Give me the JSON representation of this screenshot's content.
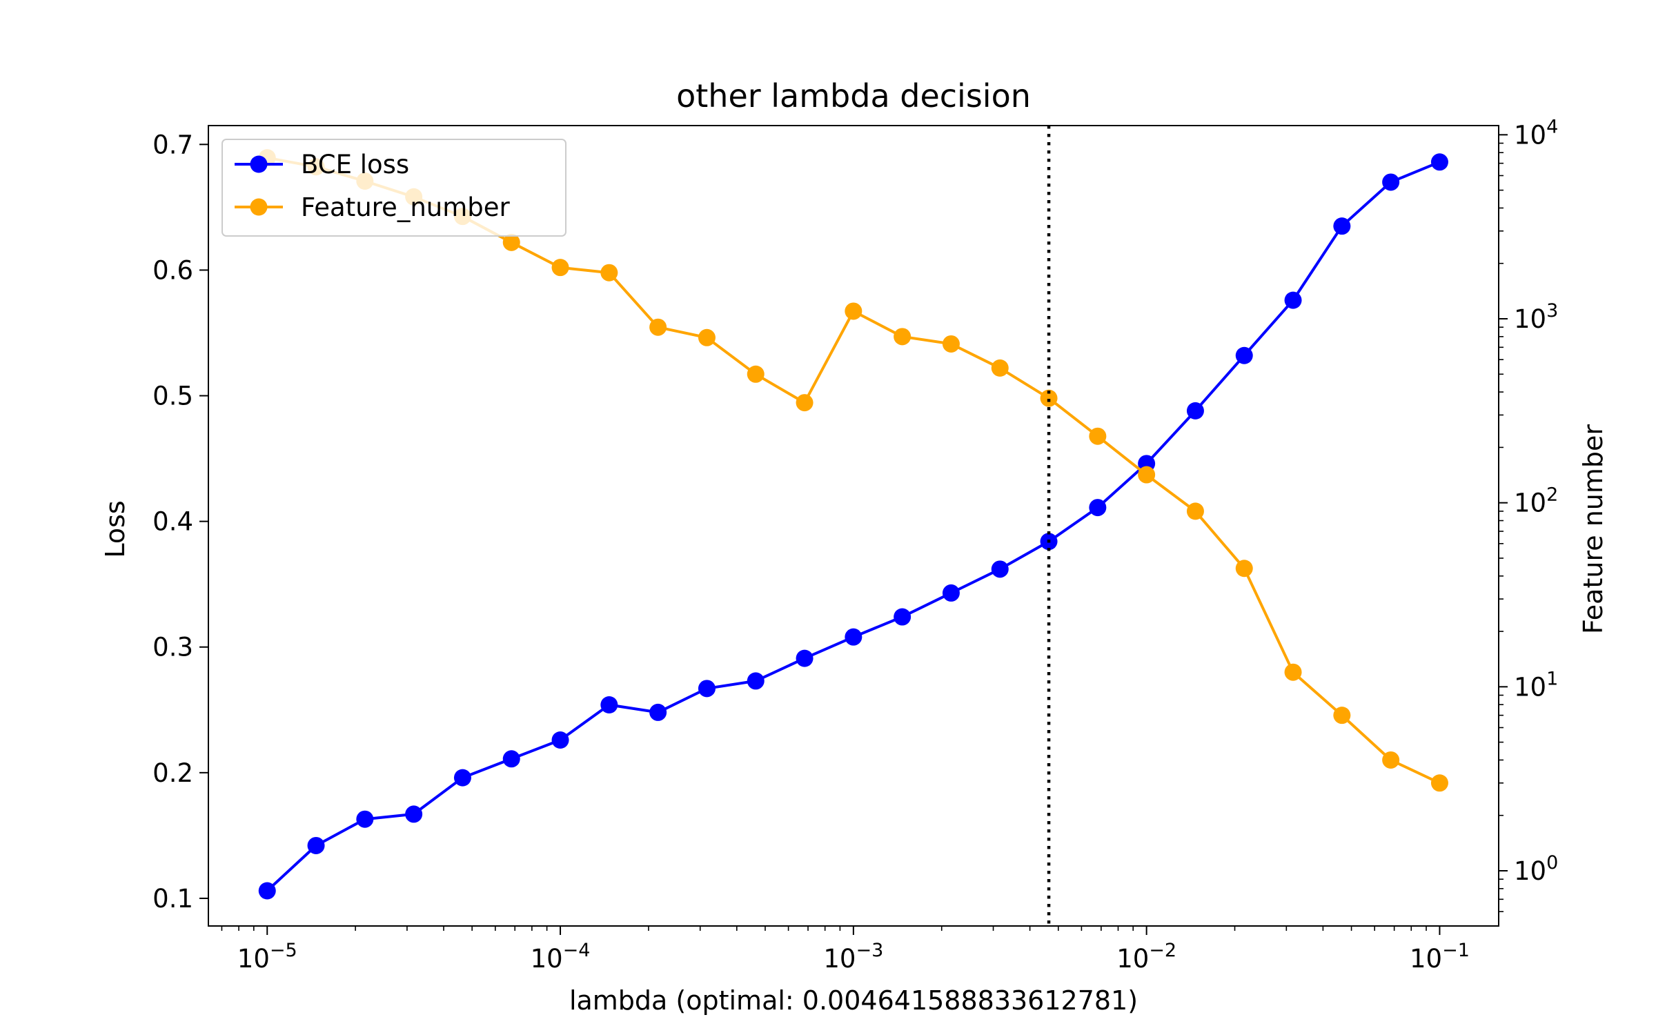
{
  "chart_data": {
    "type": "line",
    "title": "other lambda decision",
    "xlabel": "lambda (optimal: 0.004641588833612781)",
    "ylabel_left": "Loss",
    "ylabel_right": "Feature number",
    "x_scale": "log",
    "xlim": [
      6.3e-06,
      0.159
    ],
    "ylim_left": [
      0.078,
      0.715
    ],
    "ylim_right_log10": [
      -0.3,
      4.05
    ],
    "yscale_right": "log",
    "x_ticks": [
      {
        "value": 1e-05,
        "base": "10",
        "exp": "−5"
      },
      {
        "value": 0.0001,
        "base": "10",
        "exp": "−4"
      },
      {
        "value": 0.001,
        "base": "10",
        "exp": "−3"
      },
      {
        "value": 0.01,
        "base": "10",
        "exp": "−2"
      },
      {
        "value": 0.1,
        "base": "10",
        "exp": "−1"
      }
    ],
    "y_left_ticks": [
      "0.1",
      "0.2",
      "0.3",
      "0.4",
      "0.5",
      "0.6",
      "0.7"
    ],
    "y_right_ticks": [
      {
        "value": 1,
        "base": "10",
        "exp": "0"
      },
      {
        "value": 10,
        "base": "10",
        "exp": "1"
      },
      {
        "value": 100,
        "base": "10",
        "exp": "2"
      },
      {
        "value": 1000,
        "base": "10",
        "exp": "3"
      },
      {
        "value": 10000,
        "base": "10",
        "exp": "4"
      }
    ],
    "x": [
      1e-05,
      1.4678e-05,
      2.1544e-05,
      3.1623e-05,
      4.6416e-05,
      6.8129e-05,
      0.0001,
      0.00014678,
      0.00021544,
      0.00031623,
      0.00046416,
      0.00068129,
      0.001,
      0.0014678,
      0.0021544,
      0.0031623,
      0.0046416,
      0.0068129,
      0.01,
      0.014678,
      0.021544,
      0.031623,
      0.046416,
      0.068129,
      0.1
    ],
    "series": [
      {
        "name": "BCE loss",
        "axis": "left",
        "color": "#0000ff",
        "values": [
          0.106,
          0.142,
          0.163,
          0.167,
          0.196,
          0.211,
          0.226,
          0.254,
          0.248,
          0.267,
          0.273,
          0.291,
          0.308,
          0.324,
          0.343,
          0.362,
          0.384,
          0.411,
          0.446,
          0.488,
          0.532,
          0.576,
          0.635,
          0.67,
          0.686
        ]
      },
      {
        "name": "Feature_number",
        "axis": "right",
        "color": "#ffa500",
        "values": [
          7500,
          6700,
          5600,
          4600,
          3600,
          2600,
          1900,
          1780,
          900,
          790,
          500,
          350,
          1100,
          800,
          730,
          540,
          370,
          230,
          142,
          90,
          44,
          12,
          7,
          4,
          3
        ]
      }
    ],
    "vline": {
      "x": 0.004641588833612781,
      "style": "dotted",
      "color": "#000000"
    },
    "legend": "top-left",
    "grid": false
  }
}
